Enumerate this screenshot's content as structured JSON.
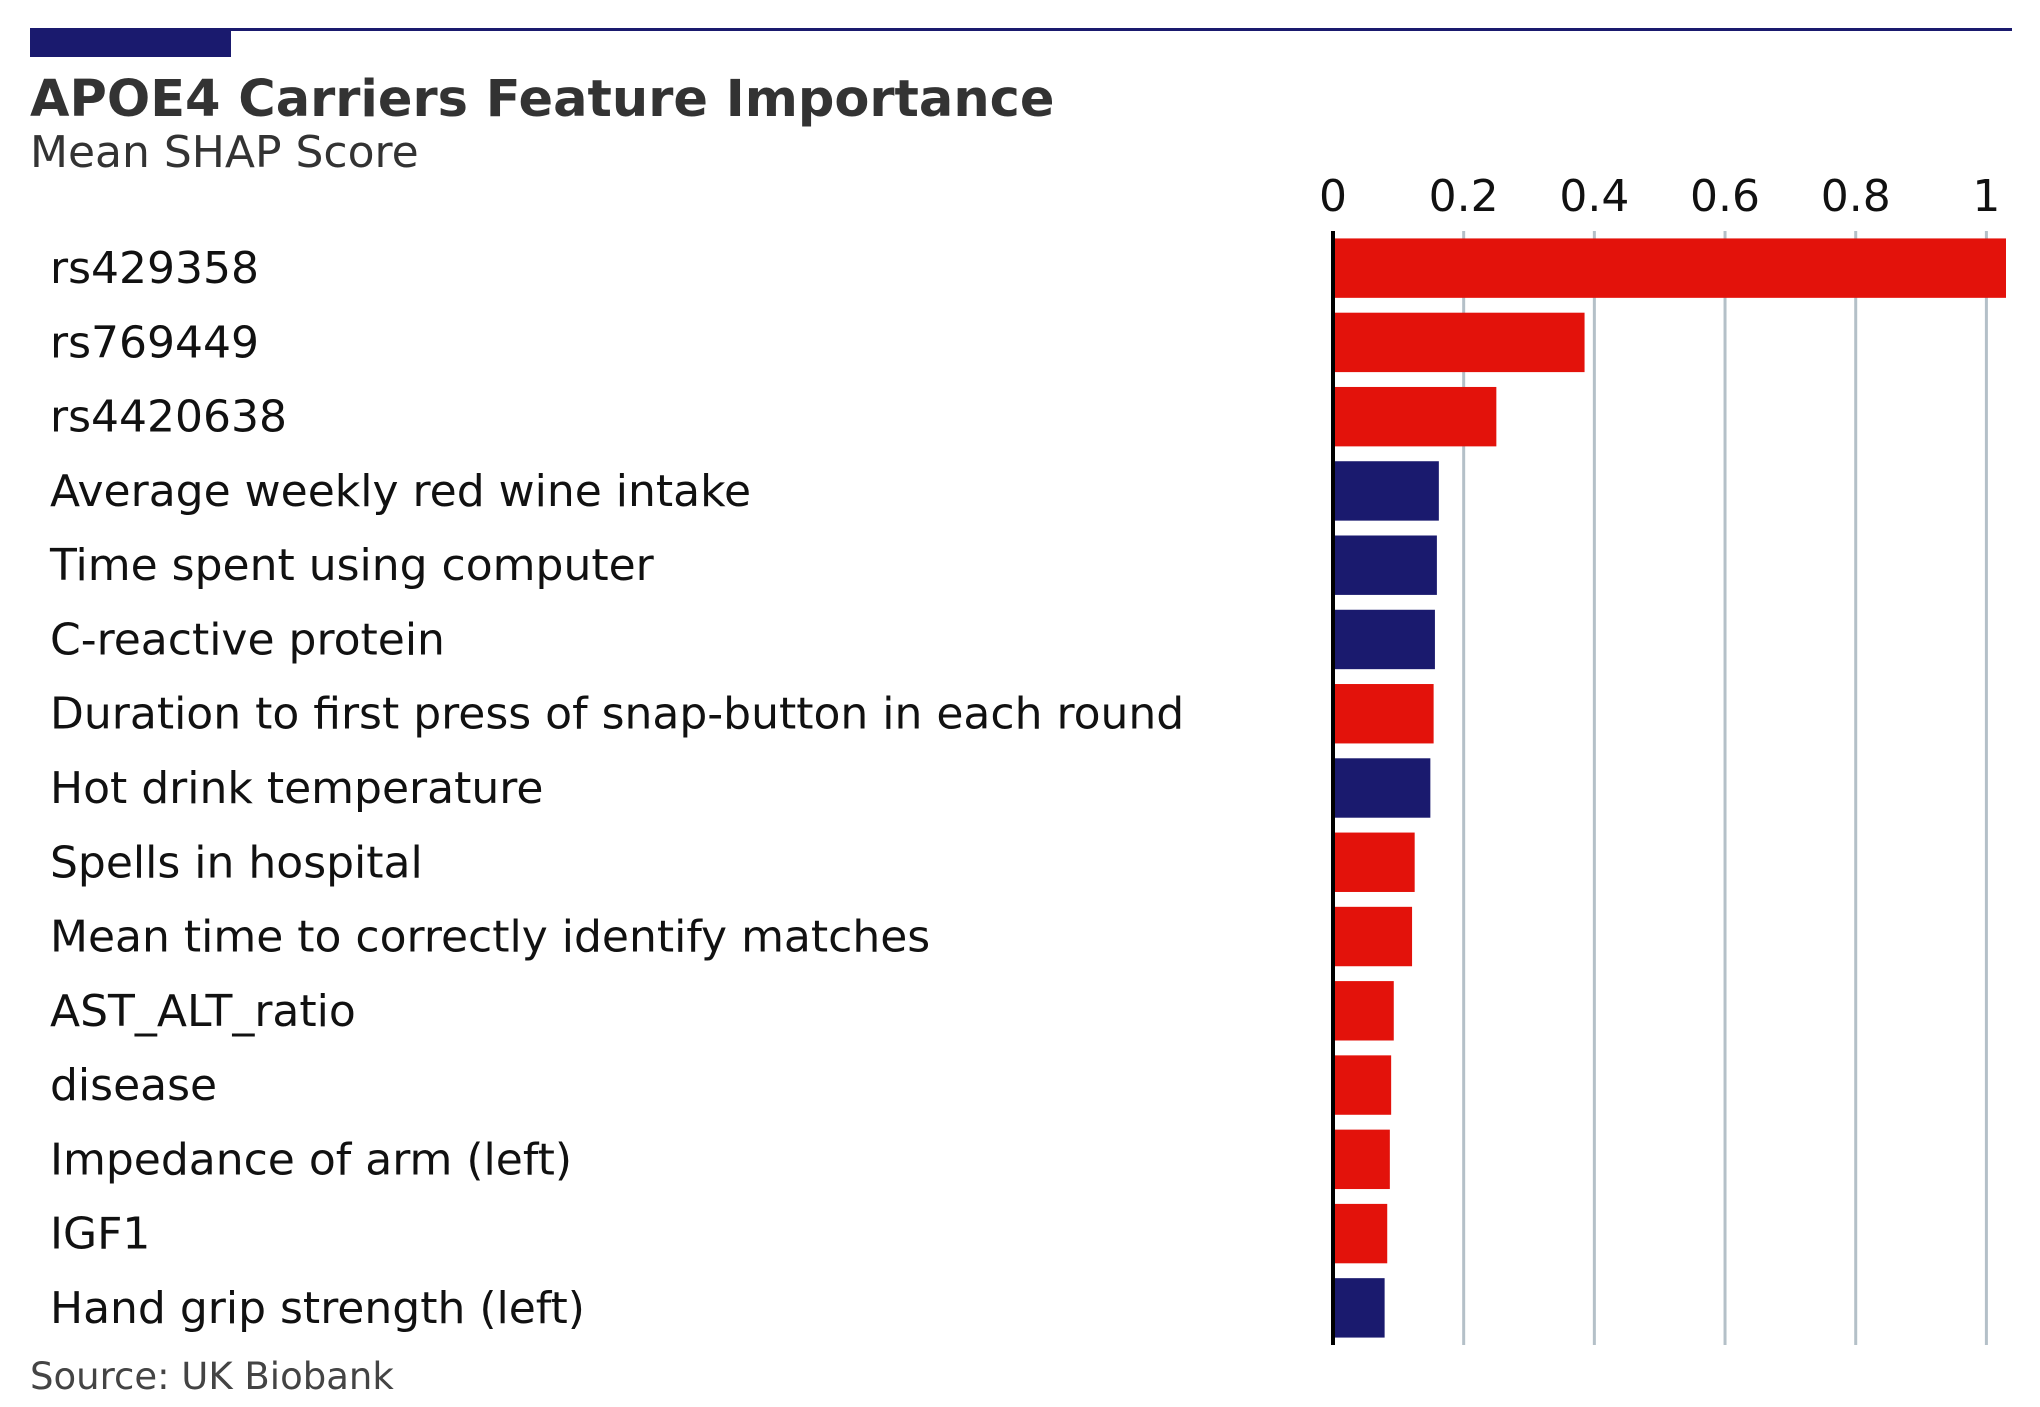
{
  "chart_data": {
    "type": "bar",
    "orientation": "horizontal",
    "title": "APOE4 Carriers Feature Importance",
    "subtitle": "Mean SHAP Score",
    "source": "Source: UK Biobank",
    "xlim": [
      0,
      1.03
    ],
    "xticks": [
      0,
      0.2,
      0.4,
      0.6,
      0.8,
      1
    ],
    "xtick_labels": [
      "0",
      "0.2",
      "0.4",
      "0.6",
      "0.8",
      "1"
    ],
    "tick_position": "top",
    "grid": "vertical",
    "colors": {
      "red": "#e3120b",
      "navy": "#1a1a6e",
      "grid": "#b4c0c8",
      "axis": "#000000"
    },
    "categories": [
      "rs429358",
      "rs769449",
      "rs4420638",
      "Average weekly red wine intake",
      "Time spent using computer",
      "C-reactive protein",
      "Duration to first press of snap-button in each round",
      "Hot drink temperature",
      "Spells in hospital",
      "Mean time to correctly identify matches",
      "AST_ALT_ratio",
      "disease",
      "Impedance of arm (left)",
      "IGF1",
      "Hand grip strength (left)"
    ],
    "values": [
      1.03,
      0.385,
      0.25,
      0.162,
      0.159,
      0.156,
      0.154,
      0.149,
      0.125,
      0.121,
      0.093,
      0.089,
      0.087,
      0.083,
      0.079
    ],
    "bar_colors": [
      "red",
      "red",
      "red",
      "navy",
      "navy",
      "navy",
      "red",
      "navy",
      "red",
      "red",
      "red",
      "red",
      "red",
      "red",
      "navy"
    ]
  }
}
